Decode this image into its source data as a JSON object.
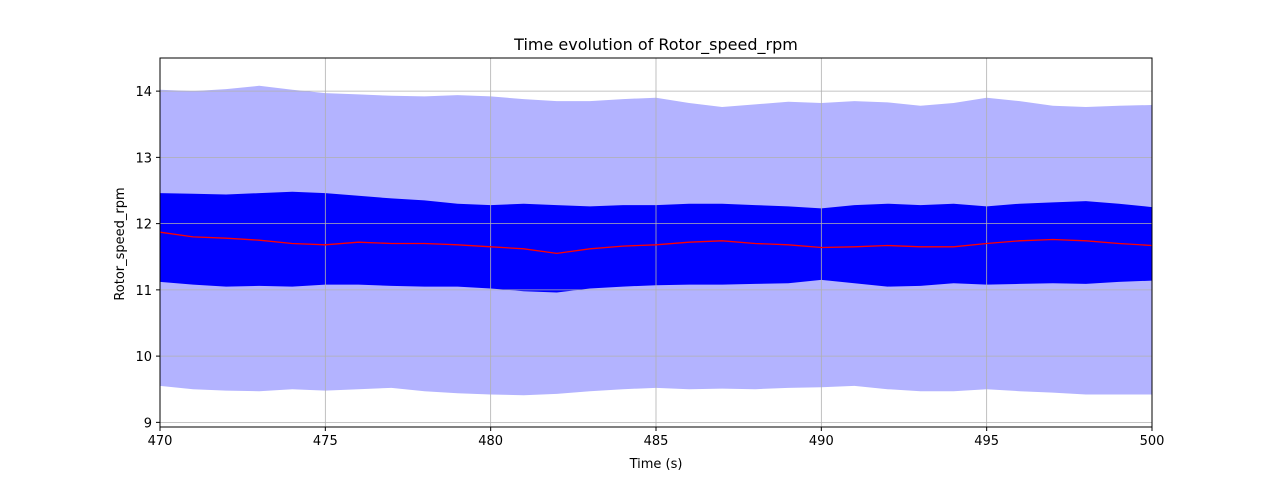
{
  "chart_data": {
    "type": "area",
    "title": "Time evolution of Rotor_speed_rpm",
    "xlabel": "Time (s)",
    "ylabel": "Rotor_speed_rpm",
    "xlim": [
      470,
      500
    ],
    "ylim": [
      8.93,
      14.5
    ],
    "xticks": [
      470,
      475,
      480,
      485,
      490,
      495,
      500
    ],
    "yticks": [
      9,
      10,
      11,
      12,
      13,
      14
    ],
    "grid": true,
    "colors": {
      "outer_band": "#b3b3ff",
      "inner_band": "#0000ff",
      "mean_line": "#ff0000",
      "grid": "#b0b0b0"
    },
    "x": [
      470,
      471,
      472,
      473,
      474,
      475,
      476,
      477,
      478,
      479,
      480,
      481,
      482,
      483,
      484,
      485,
      486,
      487,
      488,
      489,
      490,
      491,
      492,
      493,
      494,
      495,
      496,
      497,
      498,
      499,
      500
    ],
    "series": [
      {
        "values": [
          11.87,
          11.8,
          11.78,
          11.75,
          11.7,
          11.68,
          11.72,
          11.7,
          11.7,
          11.68,
          11.65,
          11.62,
          11.55,
          11.62,
          11.66,
          11.68,
          11.72,
          11.74,
          11.7,
          11.68,
          11.64,
          11.65,
          11.67,
          11.65,
          11.65,
          11.7,
          11.74,
          11.76,
          11.74,
          11.7,
          11.67
        ]
      }
    ],
    "bands": [
      {
        "lower": [
          9.55,
          9.5,
          9.48,
          9.47,
          9.5,
          9.48,
          9.5,
          9.52,
          9.47,
          9.44,
          9.42,
          9.41,
          9.43,
          9.47,
          9.5,
          9.52,
          9.5,
          9.51,
          9.5,
          9.52,
          9.53,
          9.55,
          9.5,
          9.47,
          9.47,
          9.5,
          9.47,
          9.45,
          9.42,
          9.42,
          9.42
        ],
        "upper": [
          14.02,
          14.0,
          14.03,
          14.08,
          14.02,
          13.97,
          13.95,
          13.93,
          13.92,
          13.94,
          13.92,
          13.88,
          13.85,
          13.85,
          13.88,
          13.9,
          13.82,
          13.76,
          13.8,
          13.84,
          13.82,
          13.85,
          13.83,
          13.78,
          13.82,
          13.9,
          13.85,
          13.78,
          13.76,
          13.78,
          13.79
        ]
      },
      {
        "lower": [
          11.12,
          11.08,
          11.05,
          11.06,
          11.05,
          11.08,
          11.08,
          11.06,
          11.05,
          11.05,
          11.02,
          10.98,
          10.96,
          11.02,
          11.05,
          11.07,
          11.08,
          11.08,
          11.09,
          11.1,
          11.15,
          11.1,
          11.05,
          11.06,
          11.1,
          11.08,
          11.09,
          11.1,
          11.09,
          11.12,
          11.14
        ],
        "upper": [
          12.46,
          12.45,
          12.44,
          12.46,
          12.48,
          12.46,
          12.42,
          12.38,
          12.35,
          12.3,
          12.28,
          12.3,
          12.28,
          12.26,
          12.28,
          12.28,
          12.3,
          12.3,
          12.28,
          12.26,
          12.23,
          12.28,
          12.3,
          12.28,
          12.3,
          12.26,
          12.3,
          12.32,
          12.34,
          12.3,
          12.25
        ]
      }
    ]
  }
}
